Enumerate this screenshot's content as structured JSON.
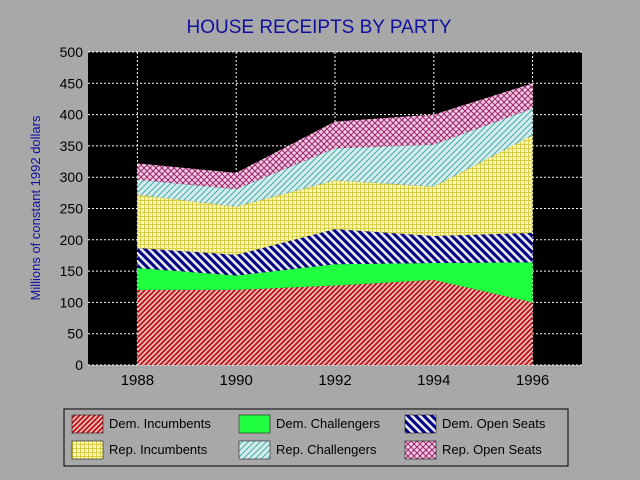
{
  "chart_data": {
    "type": "area",
    "stacked": true,
    "title": "HOUSE RECEIPTS BY PARTY",
    "xlabel": "",
    "ylabel": "Millions of constant 1992 dollars",
    "x": [
      1988,
      1990,
      1992,
      1994,
      1996
    ],
    "x_ticks": [
      "1988",
      "1990",
      "1992",
      "1994",
      "1996"
    ],
    "xlim": [
      1987,
      1997
    ],
    "ylim": [
      0,
      500
    ],
    "y_ticks": [
      "0",
      "50",
      "100",
      "150",
      "200",
      "250",
      "300",
      "350",
      "400",
      "450",
      "500"
    ],
    "grid": true,
    "legend_position": "bottom",
    "series": [
      {
        "name": "Dem. Incumbents",
        "values": [
          120,
          120,
          127,
          136,
          100
        ],
        "color": "#d02020",
        "pattern": "diagonal"
      },
      {
        "name": "Dem. Challengers",
        "values": [
          35,
          23,
          34,
          27,
          64
        ],
        "color": "#20ff40",
        "pattern": "solid"
      },
      {
        "name": "Dem. Open Seats",
        "values": [
          32,
          33,
          56,
          43,
          47
        ],
        "color": "#000080",
        "pattern": "wide-diagonal"
      },
      {
        "name": "Rep. Incumbents",
        "values": [
          85,
          77,
          78,
          79,
          156
        ],
        "color": "#e8e050",
        "pattern": "grid"
      },
      {
        "name": "Rep. Challengers",
        "values": [
          24,
          28,
          51,
          67,
          43
        ],
        "color": "#40b0b0",
        "pattern": "reverse-diagonal"
      },
      {
        "name": "Rep. Open Seats",
        "values": [
          26,
          26,
          43,
          48,
          40
        ],
        "color": "#a02070",
        "pattern": "crosshatch"
      }
    ]
  }
}
